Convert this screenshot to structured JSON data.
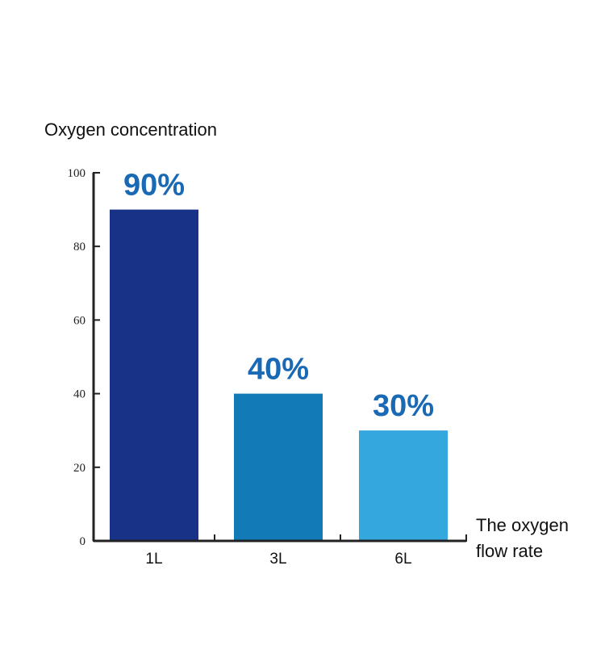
{
  "colors": {
    "axis": "#222222",
    "label": "#1a69b4",
    "bars": [
      "#183288",
      "#137ab8",
      "#35a7df"
    ]
  },
  "chart_data": {
    "type": "bar",
    "title": "",
    "ylabel": "Oxygen concentration",
    "xlabel_lines": [
      "The oxygen",
      "flow rate"
    ],
    "categories": [
      "1L",
      "3L",
      "6L"
    ],
    "values": [
      90,
      40,
      30
    ],
    "data_labels": [
      "90%",
      "40%",
      "30%"
    ],
    "ylim": [
      0,
      100
    ],
    "yticks": [
      0,
      20,
      40,
      60,
      80,
      100
    ],
    "grid": false
  }
}
